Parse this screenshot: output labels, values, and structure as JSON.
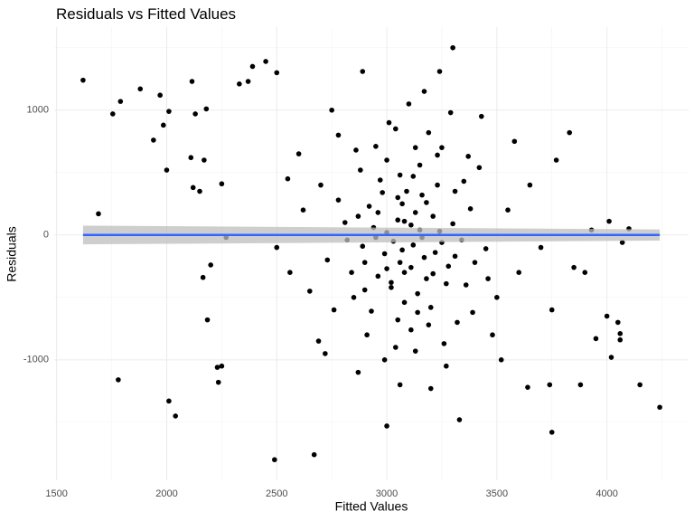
{
  "chart_data": {
    "type": "scatter",
    "title": "Residuals vs Fitted Values",
    "x_label": "Fitted Values",
    "y_label": "Residuals",
    "xlim": [
      1489,
      4371
    ],
    "ylim": [
      -1965,
      1665
    ],
    "xticks": [
      1500,
      2000,
      2500,
      3000,
      3500,
      4000
    ],
    "yticks": [
      -1000,
      0,
      1000
    ],
    "grid": true,
    "color": "#000000",
    "x": [
      1620,
      1690,
      1755,
      1790,
      1780,
      1880,
      1940,
      1970,
      1985,
      2000,
      2010,
      2010,
      2040,
      2110,
      2115,
      2120,
      2130,
      2150,
      2165,
      2170,
      2180,
      2185,
      2200,
      2230,
      2235,
      2250,
      2250,
      2270,
      3930,
      3950,
      4000,
      4010,
      4020,
      4050,
      4060,
      4060,
      4070,
      4100,
      4150,
      4240,
      3750,
      3830,
      3770,
      3850,
      3900,
      3880,
      3640,
      3740,
      2490,
      2670,
      3000,
      3330,
      2890,
      3300,
      3240,
      2450,
      2390,
      2500,
      2370,
      2330,
      3050,
      3120,
      2980,
      3210,
      3150,
      2900,
      3300,
      3080,
      2950,
      3180,
      3020,
      3250,
      2870,
      3350,
      3110,
      3000,
      3190,
      2930,
      3060,
      3270,
      2820,
      3400,
      3130,
      2990,
      3230,
      3040,
      3160,
      2880,
      3320,
      3090,
      2960,
      3380,
      3140,
      3010,
      3240,
      2850,
      3170,
      3070,
      3290,
      2940,
      3110,
      3450,
      2780,
      3200,
      3030,
      3130,
      2910,
      3360,
      3080,
      2970,
      3220,
      3050,
      3310,
      2840,
      3150,
      3000,
      3260,
      2890,
      3100,
      3420,
      2760,
      3180,
      3060,
      2920,
      3340,
      3120,
      2990,
      3210,
      3500,
      2700,
      3070,
      3280,
      2860,
      3160,
      3020,
      3390,
      2950,
      3130,
      3250,
      2810,
      3550,
      3040,
      3190,
      2730,
      3310,
      3080,
      2960,
      3230,
      3600,
      2650,
      3050,
      3140,
      3370,
      2900,
      3110,
      3000,
      3270,
      2780,
      3480,
      3170,
      2620,
      3650,
      3060,
      2690,
      3430,
      2870,
      3200,
      2560,
      3700,
      2600,
      3520,
      2750,
      3580,
      2500,
      3750,
      2550,
      3460,
      2720
    ],
    "values": [
      1240,
      170,
      970,
      1070,
      -1160,
      1170,
      760,
      1120,
      880,
      520,
      990,
      -1330,
      -1450,
      620,
      1230,
      380,
      970,
      350,
      -340,
      600,
      1010,
      -680,
      -240,
      -1060,
      -1180,
      -1050,
      410,
      -20,
      40,
      -830,
      -650,
      110,
      -980,
      -700,
      -790,
      -840,
      -60,
      50,
      -1200,
      -1380,
      -1580,
      820,
      600,
      -260,
      -300,
      -1200,
      -1220,
      -1200,
      -1800,
      -1760,
      -1530,
      -1480,
      1310,
      1500,
      1310,
      1390,
      1350,
      1300,
      1230,
      1210,
      120,
      -80,
      340,
      -310,
      560,
      -220,
      90,
      -540,
      710,
      260,
      -420,
      -60,
      150,
      430,
      -760,
      20,
      820,
      -610,
      480,
      -390,
      -40,
      -220,
      180,
      -150,
      640,
      -900,
      -20,
      520,
      -700,
      350,
      -330,
      210,
      -470,
      900,
      30,
      -500,
      -180,
      250,
      980,
      60,
      -260,
      -110,
      280,
      -580,
      -50,
      700,
      -800,
      -400,
      110,
      440,
      -140,
      -680,
      350,
      -300,
      40,
      600,
      -870,
      -90,
      1050,
      540,
      -600,
      -350,
      -220,
      230,
      -40,
      470,
      -1000,
      150,
      -500,
      400,
      -120,
      -250,
      680,
      320,
      -380,
      -620,
      -20,
      -930,
      700,
      100,
      200,
      850,
      -720,
      -200,
      -170,
      -300,
      180,
      400,
      -300,
      -450,
      300,
      -620,
      630,
      -440,
      80,
      -270,
      -1050,
      800,
      -800,
      1150,
      200,
      400,
      -1200,
      -850,
      950,
      -1100,
      -1230,
      -300,
      -100,
      650,
      -1000,
      1000,
      750,
      -100,
      -600,
      450,
      -350,
      -950
    ],
    "fit": {
      "x": [
        1620,
        4240
      ],
      "values": [
        0,
        0
      ],
      "lower": [
        -75,
        -45
      ],
      "upper": [
        75,
        45
      ],
      "color": "#3366ff",
      "band_color": "#bdbdbd"
    }
  }
}
